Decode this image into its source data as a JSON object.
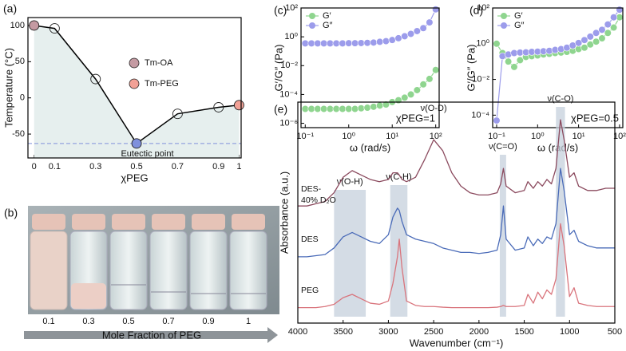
{
  "chart_data": [
    {
      "type": "line",
      "panel": "(a)",
      "x_label": "χPEG",
      "y_label": "Temperature (°C)",
      "x": [
        0,
        0.1,
        0.3,
        0.5,
        0.7,
        0.9,
        1
      ],
      "values": [
        100,
        96,
        26,
        -63,
        -22,
        -13,
        -10
      ],
      "color": "#000000",
      "fill": "#e6efee",
      "point_colors": [
        "#c49aa2",
        "none",
        "none",
        "#7f90dc",
        "none",
        "none",
        "#f2a196"
      ],
      "xlim": [
        -0.03,
        1.01
      ],
      "ylim": [
        -83,
        111
      ],
      "xticks": [
        0,
        0.1,
        0.3,
        0.5,
        0.7,
        0.9,
        1
      ],
      "yticks": [
        -50,
        0,
        50,
        100
      ],
      "legend": [
        {
          "name": "Tm-OA",
          "color": "#c49aa2"
        },
        {
          "name": "Tm-PEG",
          "color": "#f2a196"
        }
      ],
      "reference_line": {
        "value": -63,
        "label": "Eutectic point",
        "color": "#7f90dc"
      }
    },
    {
      "type": "line",
      "scale": "log",
      "panel": "(c)",
      "x_label": "ω (rad/s)",
      "y_label": "G′/G″ (Pa)",
      "annotation": "χPEG=1",
      "legend": "upper left",
      "x": [
        0.1,
        0.139,
        0.193,
        0.268,
        0.373,
        0.518,
        0.72,
        1.0,
        1.39,
        1.93,
        2.68,
        3.73,
        5.18,
        7.2,
        10,
        13.9,
        19.3,
        26.8,
        37.3,
        51.8,
        72,
        100
      ],
      "series": [
        {
          "name": "G′",
          "color": "#8fd58f",
          "values": [
            1e-05,
            1e-05,
            1e-05,
            1e-05,
            1e-05,
            1e-05,
            1e-05,
            1e-05,
            1e-05,
            1.1e-05,
            1.2e-05,
            1.4e-05,
            1.7e-05,
            2e-05,
            3e-05,
            4e-05,
            6e-05,
            0.0001,
            0.0002,
            0.0005,
            0.0012,
            0.005
          ]
        },
        {
          "name": "G″",
          "color": "#9c9ceb",
          "values": [
            0.35,
            0.35,
            0.35,
            0.35,
            0.35,
            0.35,
            0.35,
            0.36,
            0.36,
            0.37,
            0.38,
            0.4,
            0.45,
            0.5,
            0.6,
            0.8,
            1.1,
            1.6,
            2.5,
            4,
            10,
            80
          ]
        }
      ],
      "xlim": [
        0.08,
        120
      ],
      "ylim": [
        5e-07,
        100
      ],
      "xticks": [
        {
          "value": 0.1,
          "label": "10⁻¹"
        },
        {
          "value": 1,
          "label": "10⁰"
        },
        {
          "value": 10,
          "label": "10¹"
        },
        {
          "value": 100,
          "label": "10²"
        }
      ],
      "yticks": [
        {
          "value": 1e-06,
          "label": "10⁻⁶"
        },
        {
          "value": 0.0001,
          "label": "10⁻⁴"
        },
        {
          "value": 0.01,
          "label": "10⁻²"
        },
        {
          "value": 1,
          "label": "10⁰"
        },
        {
          "value": 100,
          "label": "10²"
        }
      ]
    },
    {
      "type": "line",
      "scale": "log",
      "panel": "(d)",
      "x_label": "ω (rad/s)",
      "y_label": "G′/G″ (Pa)",
      "annotation": "χPEG=0.5",
      "legend": "upper left",
      "x": [
        0.1,
        0.139,
        0.193,
        0.268,
        0.373,
        0.518,
        0.72,
        1.0,
        1.39,
        1.93,
        2.68,
        3.73,
        5.18,
        7.2,
        10,
        13.9,
        19.3,
        26.8,
        37.3,
        51.8,
        72,
        100
      ],
      "series": [
        {
          "name": "G′",
          "color": "#8fd58f",
          "values": [
            1.0,
            0.3,
            0.1,
            0.05,
            0.12,
            0.18,
            0.2,
            0.22,
            0.25,
            0.27,
            0.3,
            0.32,
            0.35,
            0.4,
            0.5,
            0.6,
            0.9,
            1.3,
            2,
            4,
            8,
            30
          ]
        },
        {
          "name": "G″",
          "color": "#9c9ceb",
          "values": [
            5e-05,
            0.2,
            0.25,
            0.3,
            0.32,
            0.33,
            0.35,
            0.36,
            0.38,
            0.4,
            0.45,
            0.5,
            0.6,
            0.8,
            1.1,
            1.6,
            2.5,
            4,
            6,
            12,
            30,
            80
          ]
        }
      ],
      "xlim": [
        0.08,
        120
      ],
      "ylim": [
        2e-05,
        100
      ],
      "xticks": [
        {
          "value": 0.1,
          "label": "10⁻¹"
        },
        {
          "value": 1,
          "label": "10⁰"
        },
        {
          "value": 10,
          "label": "10¹"
        },
        {
          "value": 100,
          "label": "10²"
        }
      ],
      "yticks": [
        {
          "value": 0.0001,
          "label": "10⁻⁴"
        },
        {
          "value": 0.01,
          "label": "10⁻²"
        },
        {
          "value": 1,
          "label": "10⁰"
        },
        {
          "value": 100,
          "label": "10²"
        }
      ]
    },
    {
      "type": "spectrum",
      "panel": "(e)",
      "x_label": "Wavenumber (cm⁻¹)",
      "y_label": "Absorbance (a.u.)",
      "x": [
        4000,
        3900,
        3800,
        3700,
        3600,
        3500,
        3400,
        3300,
        3200,
        3100,
        3000,
        2950,
        2900,
        2880,
        2850,
        2800,
        2700,
        2600,
        2500,
        2400,
        2300,
        2200,
        2100,
        2000,
        1900,
        1800,
        1760,
        1730,
        1700,
        1600,
        1500,
        1460,
        1400,
        1350,
        1300,
        1250,
        1200,
        1150,
        1100,
        1060,
        1000,
        950,
        900,
        800,
        700,
        600,
        500
      ],
      "series": [
        {
          "name": "DES-40% D₂O",
          "color": "#8b4a5e",
          "values": [
            5.3,
            5.3,
            5.4,
            5.5,
            5.9,
            6.6,
            6.9,
            6.7,
            6.5,
            6.4,
            6.5,
            6.8,
            6.8,
            6.7,
            6.5,
            6.4,
            6.6,
            7.4,
            8.3,
            7.8,
            6.8,
            6.2,
            5.9,
            5.8,
            5.8,
            5.9,
            6.3,
            7.0,
            6.2,
            5.9,
            6.0,
            6.4,
            6.1,
            6.4,
            6.2,
            6.5,
            6.3,
            7.0,
            9.2,
            8.3,
            6.6,
            6.8,
            6.2,
            6.0,
            6.0,
            6.1,
            6.1
          ]
        },
        {
          "name": "DES",
          "color": "#4a6bb8",
          "values": [
            3.0,
            3.0,
            3.05,
            3.1,
            3.4,
            3.9,
            4.1,
            3.9,
            3.7,
            3.6,
            4.0,
            4.8,
            5.2,
            5.1,
            4.6,
            4.0,
            3.8,
            3.7,
            3.6,
            3.4,
            3.3,
            3.2,
            3.2,
            3.15,
            3.2,
            3.3,
            4.0,
            5.3,
            3.8,
            3.3,
            3.4,
            3.9,
            3.5,
            3.8,
            3.6,
            3.9,
            3.8,
            4.5,
            7.0,
            6.0,
            4.0,
            4.2,
            3.7,
            3.5,
            3.4,
            3.4,
            3.4
          ]
        },
        {
          "name": "PEG",
          "color": "#d9747c",
          "values": [
            0.7,
            0.7,
            0.7,
            0.75,
            0.85,
            1.15,
            1.3,
            1.1,
            0.9,
            0.85,
            1.0,
            1.8,
            3.0,
            3.8,
            2.5,
            1.0,
            0.8,
            0.75,
            0.75,
            0.72,
            0.7,
            0.7,
            0.7,
            0.7,
            0.7,
            0.72,
            0.75,
            0.8,
            0.75,
            0.75,
            0.8,
            1.3,
            0.9,
            1.4,
            1.1,
            1.5,
            1.3,
            2.0,
            4.5,
            3.5,
            1.2,
            1.6,
            0.9,
            0.8,
            0.75,
            0.75,
            0.75
          ]
        }
      ],
      "xlim": [
        4000,
        500
      ],
      "ylim": [
        0,
        10
      ],
      "xticks": [
        4000,
        3500,
        3000,
        2500,
        2000,
        1500,
        1000,
        500
      ],
      "bands": [
        {
          "label": "ν(O-H)",
          "x": [
            3600,
            3250
          ]
        },
        {
          "label": "ν(C-H)",
          "x": [
            2980,
            2790
          ]
        },
        {
          "label": "ν(C=O)",
          "x": [
            1770,
            1700
          ]
        },
        {
          "label": "ν(C-O)",
          "x": [
            1150,
            1050
          ]
        }
      ],
      "annotations": [
        {
          "label": "ν(O-D)",
          "x": 2500
        }
      ]
    }
  ],
  "photo": {
    "panel": "(b)",
    "labels": [
      0.1,
      0.3,
      0.5,
      0.7,
      0.9,
      1
    ],
    "axis_label": "Mole Fraction of PEG"
  }
}
